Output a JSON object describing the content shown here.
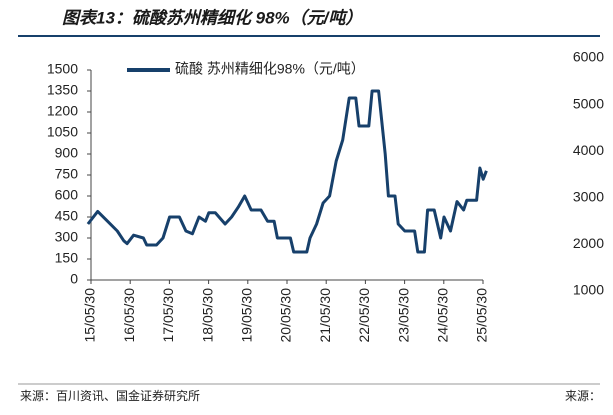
{
  "chart_data": {
    "type": "line",
    "title": "图表13：硫酸苏州精细化 98%（元/吨）",
    "source": "来源：百川资讯、国金证券研究所",
    "source_right": "来源：",
    "xlim": [
      "15/05/30",
      "25/05/30"
    ],
    "xticks": [
      "15/05/30",
      "16/05/30",
      "17/05/30",
      "18/05/30",
      "19/05/30",
      "20/05/30",
      "21/05/30",
      "22/05/30",
      "23/05/30",
      "24/05/30",
      "25/05/30"
    ],
    "ylim": [
      0,
      1500
    ],
    "yticks": [
      0,
      150,
      300,
      450,
      600,
      750,
      900,
      1050,
      1200,
      1350,
      1500
    ],
    "y2lim": [
      1000,
      6000
    ],
    "y2ticks": [
      1000,
      2000,
      3000,
      4000,
      5000,
      6000
    ],
    "legend": "top-left",
    "x": [
      "15/05",
      "15/08",
      "15/11",
      "16/02",
      "16/04",
      "16/05",
      "16/07",
      "16/10",
      "16/11",
      "17/02",
      "17/04",
      "17/06",
      "17/09",
      "17/11",
      "18/01",
      "18/03",
      "18/05",
      "18/06",
      "18/08",
      "18/11",
      "19/01",
      "19/03",
      "19/05",
      "19/07",
      "19/10",
      "19/12",
      "20/02",
      "20/03",
      "20/07",
      "20/08",
      "20/12",
      "21/01",
      "21/03",
      "21/05",
      "21/07",
      "21/09",
      "21/11",
      "22/01",
      "22/03",
      "22/04",
      "22/07",
      "22/08",
      "22/10",
      "22/12",
      "23/01",
      "23/03",
      "23/04",
      "23/06",
      "23/09",
      "23/10",
      "23/12",
      "24/01",
      "24/03",
      "24/05",
      "24/06",
      "24/08",
      "24/10",
      "24/12",
      "25/01",
      "25/04",
      "25/05",
      "25/06",
      "25/07"
    ],
    "series": [
      {
        "name": "硫酸 苏州精细化98%（元/吨）",
        "color": "#17406b",
        "values": [
          400,
          490,
          420,
          350,
          280,
          260,
          320,
          300,
          250,
          250,
          300,
          450,
          450,
          350,
          330,
          450,
          420,
          480,
          480,
          400,
          450,
          520,
          600,
          500,
          500,
          420,
          420,
          300,
          300,
          200,
          200,
          300,
          400,
          550,
          600,
          850,
          1000,
          1300,
          1300,
          1100,
          1100,
          1350,
          1350,
          900,
          600,
          600,
          400,
          350,
          350,
          200,
          200,
          500,
          500,
          300,
          450,
          350,
          560,
          500,
          570,
          570,
          800,
          720,
          780
        ]
      }
    ]
  }
}
